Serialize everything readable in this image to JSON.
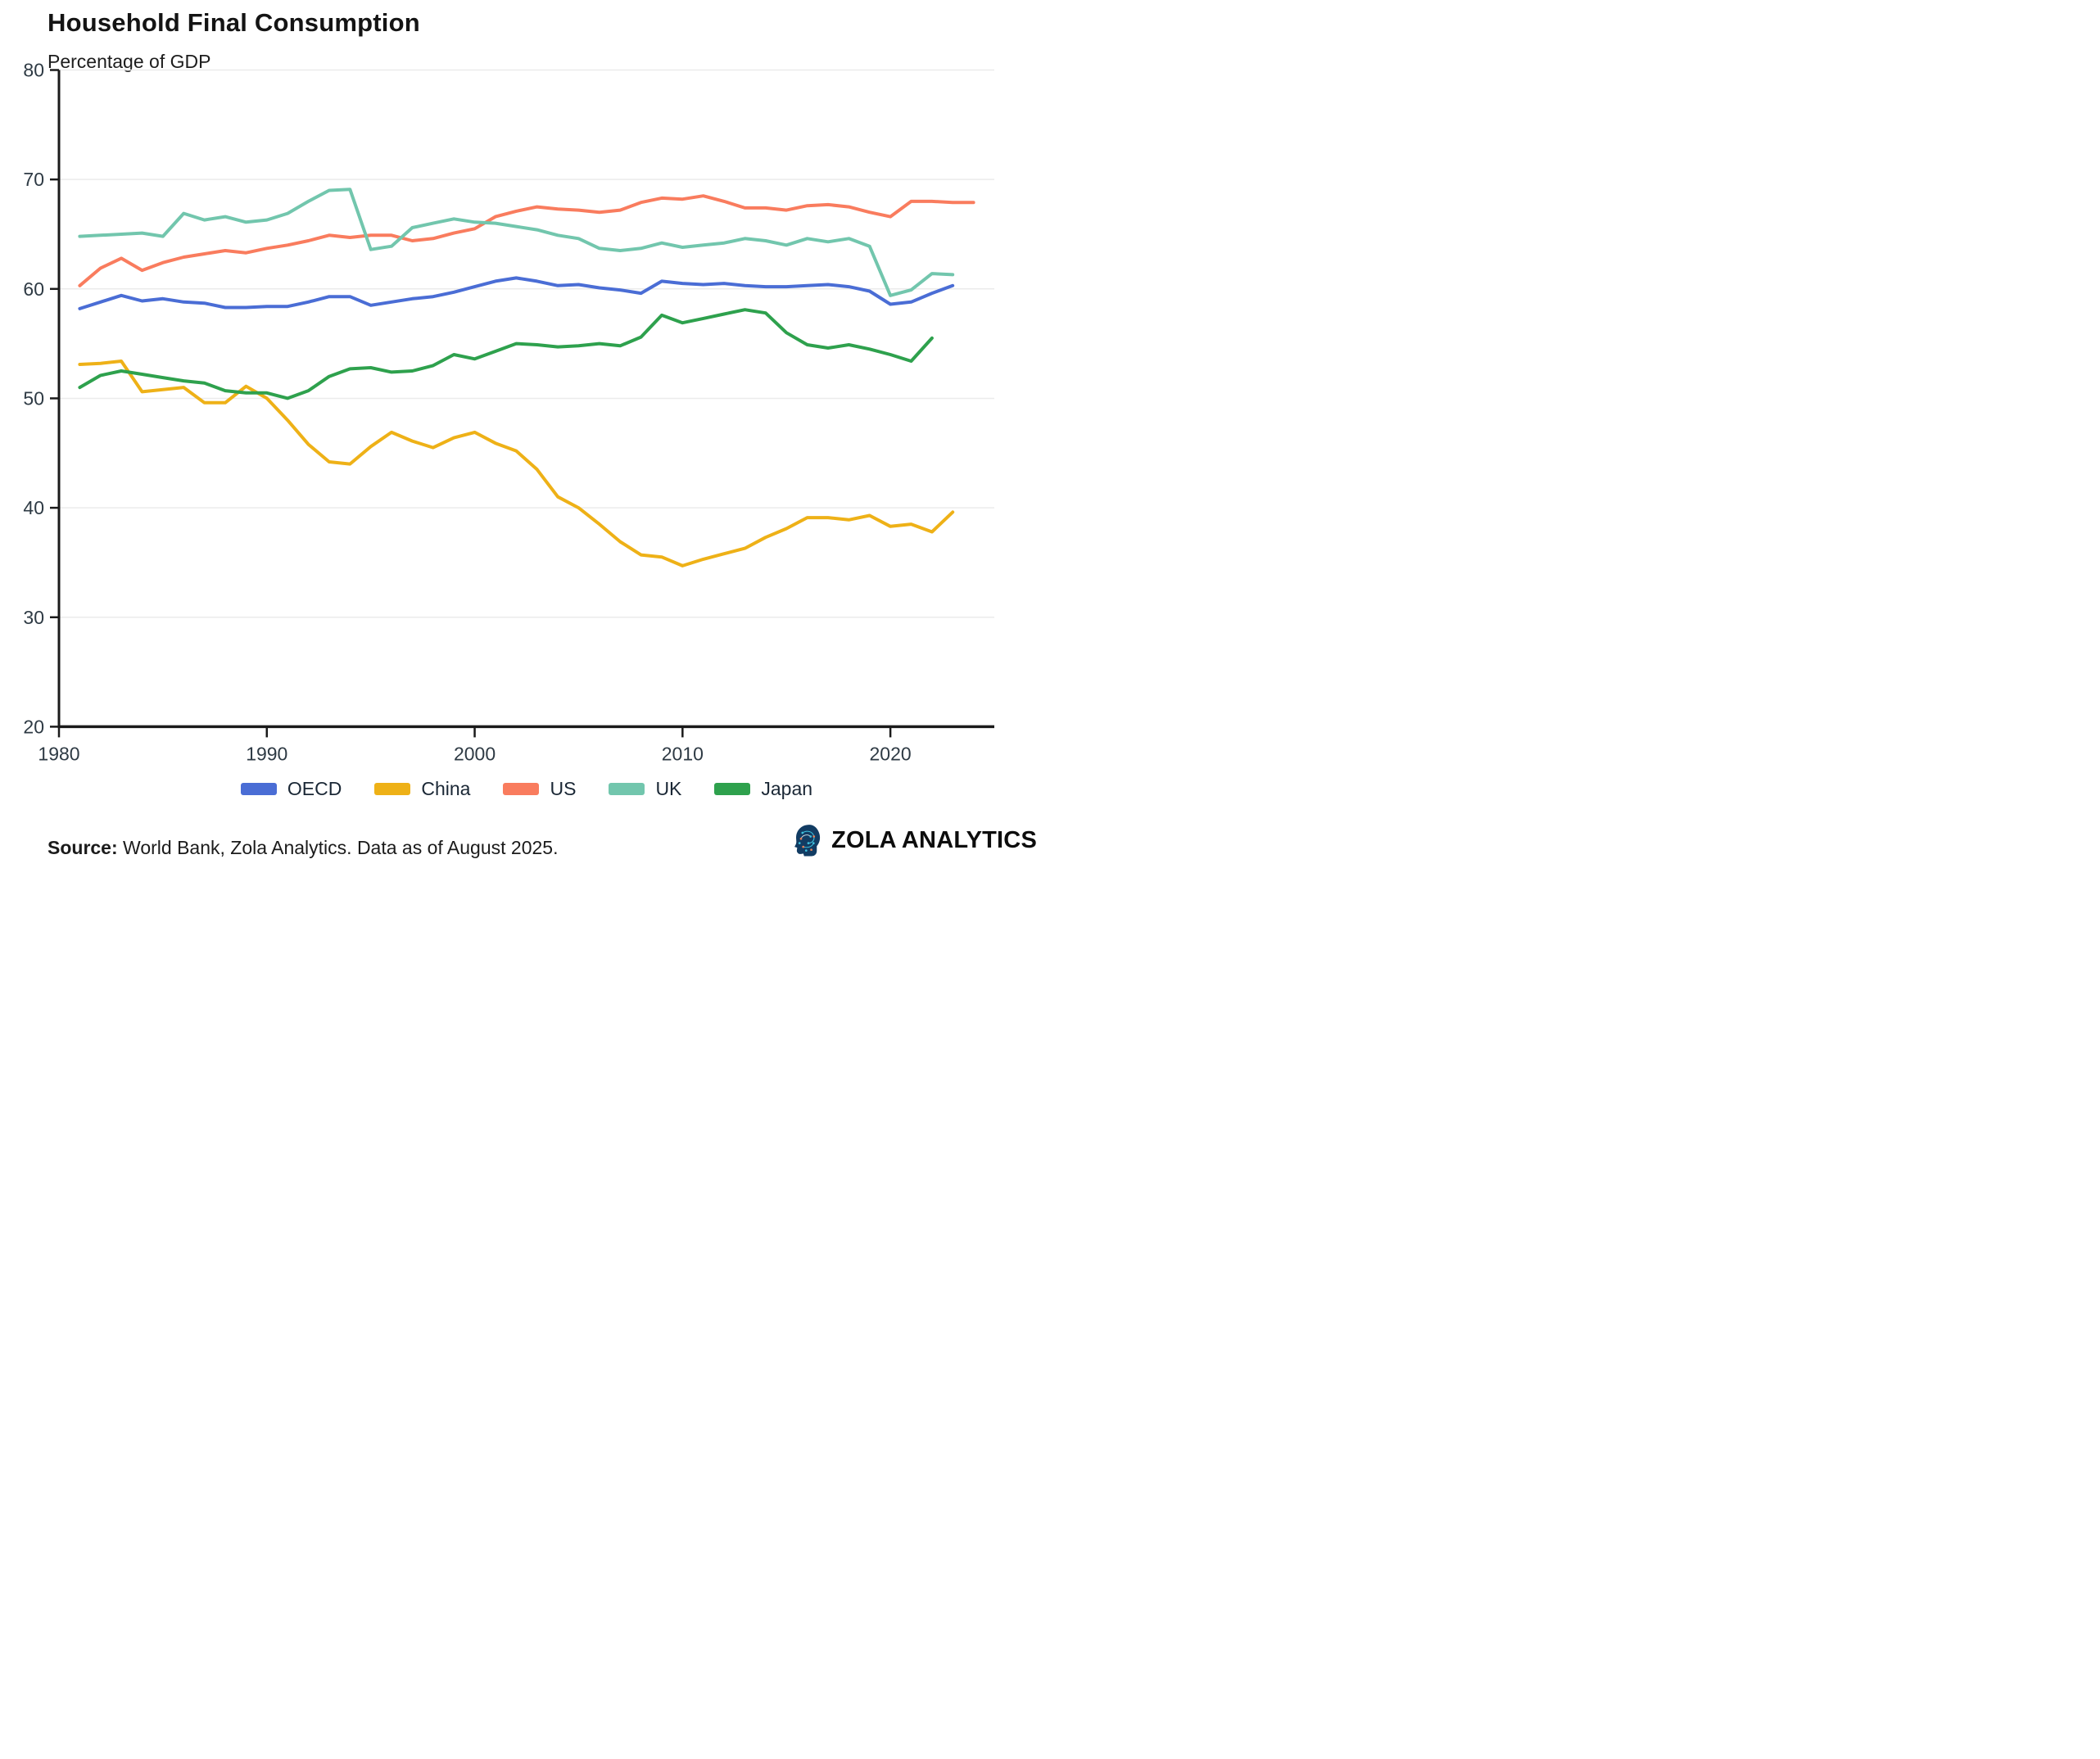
{
  "header": {
    "title": "Household Final Consumption",
    "subtitle": "Percentage of GDP"
  },
  "footer": {
    "source_label": "Source:",
    "source_text": " World Bank, Zola Analytics. Data as of August 2025.",
    "brand_name": "ZOLA ANALYTICS"
  },
  "colors": {
    "axis": "#1a1a1a",
    "grid": "#ebebeb",
    "tick_label": "#2e3a44",
    "logo_navy": "#123c63",
    "logo_cyan": "#3fc0dd",
    "logo_orange": "#e8825a"
  },
  "chart_data": {
    "type": "line",
    "title": "Household Final Consumption",
    "subtitle": "Percentage of GDP",
    "xlabel": "",
    "ylabel": "",
    "xlim": [
      1980,
      2025
    ],
    "ylim": [
      20,
      80
    ],
    "x_ticks": [
      1980,
      1990,
      2000,
      2010,
      2020
    ],
    "y_ticks": [
      20,
      30,
      40,
      50,
      60,
      70,
      80
    ],
    "grid": "horizontal",
    "legend_position": "bottom",
    "series": [
      {
        "name": "OECD",
        "color": "#4a6dd5",
        "x_start": 1981,
        "values": [
          58.2,
          58.8,
          59.4,
          58.9,
          59.1,
          58.8,
          58.7,
          58.3,
          58.3,
          58.4,
          58.4,
          58.8,
          59.3,
          59.3,
          58.5,
          58.8,
          59.1,
          59.3,
          59.7,
          60.2,
          60.7,
          61.0,
          60.7,
          60.3,
          60.4,
          60.1,
          59.9,
          59.6,
          60.7,
          60.5,
          60.4,
          60.5,
          60.3,
          60.2,
          60.2,
          60.3,
          60.4,
          60.2,
          59.8,
          58.6,
          58.8,
          59.6,
          60.3
        ]
      },
      {
        "name": "China",
        "color": "#eeb117",
        "x_start": 1981,
        "values": [
          53.1,
          53.2,
          53.4,
          50.6,
          50.8,
          51.0,
          49.6,
          49.6,
          51.1,
          50.0,
          48.0,
          45.8,
          44.2,
          44.0,
          45.6,
          46.9,
          46.1,
          45.5,
          46.4,
          46.9,
          45.9,
          45.2,
          43.5,
          41.0,
          40.0,
          38.5,
          36.9,
          35.7,
          35.5,
          34.7,
          35.3,
          35.8,
          36.3,
          37.3,
          38.1,
          39.1,
          39.1,
          38.9,
          39.3,
          38.3,
          38.5,
          37.8,
          39.6
        ]
      },
      {
        "name": "US",
        "color": "#f97c5e",
        "x_start": 1981,
        "values": [
          60.3,
          61.9,
          62.8,
          61.7,
          62.4,
          62.9,
          63.2,
          63.5,
          63.3,
          63.7,
          64.0,
          64.4,
          64.9,
          64.7,
          64.9,
          64.9,
          64.4,
          64.6,
          65.1,
          65.5,
          66.6,
          67.1,
          67.5,
          67.3,
          67.2,
          67.0,
          67.2,
          67.9,
          68.3,
          68.2,
          68.5,
          68.0,
          67.4,
          67.4,
          67.2,
          67.6,
          67.7,
          67.5,
          67.0,
          66.6,
          68.0,
          68.0,
          67.9,
          67.9
        ]
      },
      {
        "name": "UK",
        "color": "#72c6ad",
        "x_start": 1981,
        "values": [
          64.8,
          64.9,
          65.0,
          65.1,
          64.8,
          66.9,
          66.3,
          66.6,
          66.1,
          66.3,
          66.9,
          68.0,
          69.0,
          69.1,
          63.6,
          63.9,
          65.6,
          66.0,
          66.4,
          66.1,
          66.0,
          65.7,
          65.4,
          64.9,
          64.6,
          63.7,
          63.5,
          63.7,
          64.2,
          63.8,
          64.0,
          64.2,
          64.6,
          64.4,
          64.0,
          64.6,
          64.3,
          64.6,
          63.9,
          59.4,
          59.9,
          61.4,
          61.3
        ]
      },
      {
        "name": "Japan",
        "color": "#2ea14d",
        "x_start": 1981,
        "values": [
          51.0,
          52.1,
          52.5,
          52.2,
          51.9,
          51.6,
          51.4,
          50.7,
          50.5,
          50.5,
          50.0,
          50.7,
          52.0,
          52.7,
          52.8,
          52.4,
          52.5,
          53.0,
          54.0,
          53.6,
          54.3,
          55.0,
          54.9,
          54.7,
          54.8,
          55.0,
          54.8,
          55.6,
          57.6,
          56.9,
          57.3,
          57.7,
          58.1,
          57.8,
          56.0,
          54.9,
          54.6,
          54.9,
          54.5,
          54.0,
          53.4,
          55.5
        ]
      }
    ]
  }
}
